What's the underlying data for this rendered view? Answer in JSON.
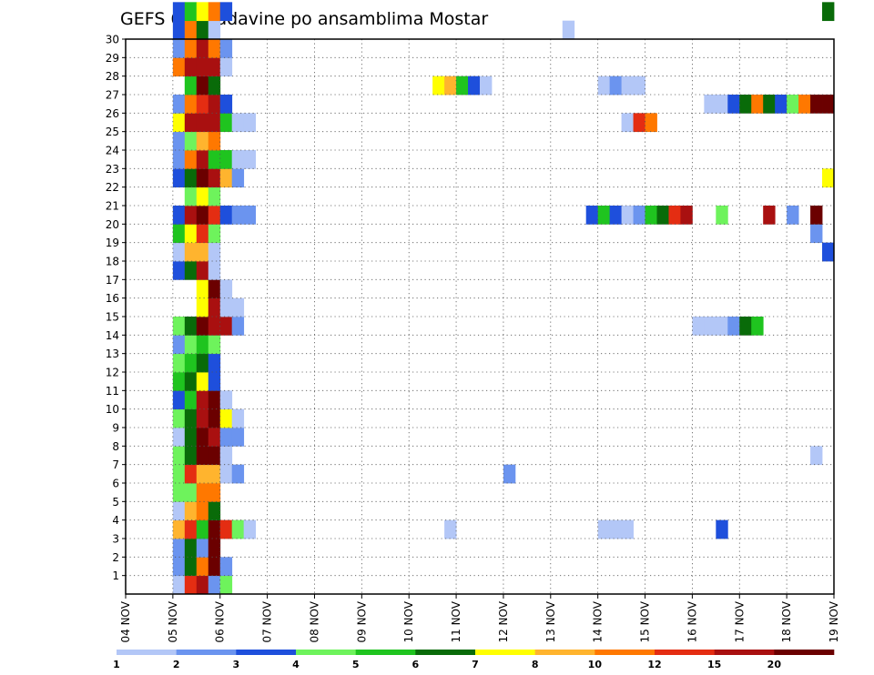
{
  "chart_data": {
    "type": "heatmap",
    "title": "GEFS 6hr padavine po ansamblima Mostar",
    "x_ticks": [
      "04 NOV",
      "05 NOV",
      "06 NOV",
      "07 NOV",
      "08 NOV",
      "09 NOV",
      "10 NOV",
      "11 NOV",
      "12 NOV",
      "13 NOV",
      "14 NOV",
      "15 NOV",
      "16 NOV",
      "17 NOV",
      "18 NOV",
      "19 NOV"
    ],
    "x_step_hours": 6,
    "y_ticks": [
      "1",
      "2",
      "3",
      "4",
      "5",
      "6",
      "7",
      "8",
      "9",
      "10",
      "11",
      "12",
      "13",
      "14",
      "15",
      "16",
      "17",
      "18",
      "19",
      "20",
      "21",
      "22",
      "23",
      "24",
      "25",
      "26",
      "27",
      "28",
      "29",
      "30"
    ],
    "y_range": [
      0,
      30
    ],
    "grid": true,
    "colorbar": {
      "labels": [
        "1",
        "2",
        "3",
        "4",
        "5",
        "6",
        "7",
        "8",
        "10",
        "12",
        "15",
        "20"
      ],
      "colors": [
        "#b3c7f7",
        "#6b94ef",
        "#1e4fdc",
        "#6ef35c",
        "#1fc41f",
        "#096b09",
        "#ffff00",
        "#ffb42e",
        "#ff7800",
        "#e42d12",
        "#a91010",
        "#6b0000"
      ]
    },
    "cells": [
      [
        0,
        4,
        0
      ],
      [
        0,
        5,
        9
      ],
      [
        0,
        6,
        10
      ],
      [
        0,
        7,
        1
      ],
      [
        0,
        8,
        3
      ],
      [
        1,
        4,
        1
      ],
      [
        1,
        5,
        5
      ],
      [
        1,
        6,
        8
      ],
      [
        1,
        7,
        11
      ],
      [
        1,
        8,
        1
      ],
      [
        2,
        4,
        1
      ],
      [
        2,
        5,
        5
      ],
      [
        2,
        6,
        1
      ],
      [
        2,
        7,
        11
      ],
      [
        3,
        4,
        7
      ],
      [
        3,
        5,
        9
      ],
      [
        3,
        6,
        4
      ],
      [
        3,
        7,
        11
      ],
      [
        3,
        8,
        9
      ],
      [
        3,
        9,
        3
      ],
      [
        3,
        10,
        0
      ],
      [
        3,
        27,
        0
      ],
      [
        3,
        40,
        0
      ],
      [
        3,
        41,
        0
      ],
      [
        3,
        42,
        0
      ],
      [
        3,
        50,
        2
      ],
      [
        4,
        4,
        0
      ],
      [
        4,
        5,
        7
      ],
      [
        4,
        6,
        8
      ],
      [
        4,
        7,
        5
      ],
      [
        5,
        4,
        3
      ],
      [
        5,
        5,
        3
      ],
      [
        5,
        6,
        8
      ],
      [
        5,
        7,
        8
      ],
      [
        6,
        4,
        3
      ],
      [
        6,
        5,
        9
      ],
      [
        6,
        6,
        7
      ],
      [
        6,
        7,
        7
      ],
      [
        6,
        8,
        0
      ],
      [
        6,
        9,
        1
      ],
      [
        6,
        32,
        1
      ],
      [
        7,
        4,
        3
      ],
      [
        7,
        5,
        5
      ],
      [
        7,
        6,
        11
      ],
      [
        7,
        7,
        11
      ],
      [
        7,
        8,
        0
      ],
      [
        7,
        58,
        0
      ],
      [
        8,
        4,
        0
      ],
      [
        8,
        5,
        5
      ],
      [
        8,
        6,
        11
      ],
      [
        8,
        7,
        10
      ],
      [
        8,
        8,
        1
      ],
      [
        8,
        9,
        1
      ],
      [
        9,
        4,
        3
      ],
      [
        9,
        5,
        5
      ],
      [
        9,
        6,
        10
      ],
      [
        9,
        7,
        11
      ],
      [
        9,
        8,
        6
      ],
      [
        9,
        9,
        0
      ],
      [
        10,
        4,
        2
      ],
      [
        10,
        5,
        4
      ],
      [
        10,
        6,
        10
      ],
      [
        10,
        7,
        11
      ],
      [
        10,
        8,
        0
      ],
      [
        11,
        4,
        4
      ],
      [
        11,
        5,
        5
      ],
      [
        11,
        6,
        6
      ],
      [
        11,
        7,
        2
      ],
      [
        12,
        4,
        3
      ],
      [
        12,
        5,
        4
      ],
      [
        12,
        6,
        5
      ],
      [
        12,
        7,
        2
      ],
      [
        13,
        4,
        1
      ],
      [
        13,
        5,
        3
      ],
      [
        13,
        6,
        4
      ],
      [
        13,
        7,
        3
      ],
      [
        14,
        4,
        3
      ],
      [
        14,
        5,
        5
      ],
      [
        14,
        6,
        11
      ],
      [
        14,
        7,
        10
      ],
      [
        14,
        8,
        10
      ],
      [
        14,
        9,
        1
      ],
      [
        14,
        48,
        0
      ],
      [
        14,
        49,
        0
      ],
      [
        14,
        50,
        0
      ],
      [
        14,
        51,
        1
      ],
      [
        14,
        52,
        5
      ],
      [
        14,
        53,
        4
      ],
      [
        15,
        6,
        6
      ],
      [
        15,
        7,
        10
      ],
      [
        15,
        8,
        0
      ],
      [
        15,
        9,
        0
      ],
      [
        16,
        6,
        6
      ],
      [
        16,
        7,
        11
      ],
      [
        16,
        8,
        0
      ],
      [
        17,
        4,
        2
      ],
      [
        17,
        5,
        5
      ],
      [
        17,
        6,
        10
      ],
      [
        17,
        7,
        0
      ],
      [
        18,
        4,
        0
      ],
      [
        18,
        5,
        7
      ],
      [
        18,
        6,
        7
      ],
      [
        18,
        7,
        0
      ],
      [
        18,
        59,
        2
      ],
      [
        19,
        4,
        4
      ],
      [
        19,
        5,
        6
      ],
      [
        19,
        6,
        9
      ],
      [
        19,
        7,
        3
      ],
      [
        19,
        58,
        1
      ],
      [
        20,
        4,
        2
      ],
      [
        20,
        5,
        10
      ],
      [
        20,
        6,
        11
      ],
      [
        20,
        7,
        9
      ],
      [
        20,
        8,
        2
      ],
      [
        20,
        9,
        1
      ],
      [
        20,
        10,
        1
      ],
      [
        20,
        39,
        2
      ],
      [
        20,
        40,
        4
      ],
      [
        20,
        41,
        2
      ],
      [
        20,
        42,
        0
      ],
      [
        20,
        43,
        1
      ],
      [
        20,
        44,
        4
      ],
      [
        20,
        45,
        5
      ],
      [
        20,
        46,
        9
      ],
      [
        20,
        47,
        10
      ],
      [
        20,
        50,
        3
      ],
      [
        20,
        54,
        10
      ],
      [
        20,
        56,
        1
      ],
      [
        20,
        58,
        11
      ],
      [
        21,
        5,
        3
      ],
      [
        21,
        6,
        6
      ],
      [
        21,
        7,
        3
      ],
      [
        22,
        4,
        2
      ],
      [
        22,
        5,
        5
      ],
      [
        22,
        6,
        11
      ],
      [
        22,
        7,
        10
      ],
      [
        22,
        8,
        7
      ],
      [
        22,
        9,
        1
      ],
      [
        22,
        59,
        6
      ],
      [
        23,
        4,
        1
      ],
      [
        23,
        5,
        8
      ],
      [
        23,
        6,
        10
      ],
      [
        23,
        7,
        4
      ],
      [
        23,
        8,
        4
      ],
      [
        23,
        9,
        0
      ],
      [
        23,
        10,
        0
      ],
      [
        24,
        4,
        1
      ],
      [
        24,
        5,
        3
      ],
      [
        24,
        6,
        7
      ],
      [
        24,
        7,
        8
      ],
      [
        25,
        4,
        6
      ],
      [
        25,
        5,
        10
      ],
      [
        25,
        6,
        10
      ],
      [
        25,
        7,
        10
      ],
      [
        25,
        8,
        4
      ],
      [
        25,
        9,
        0
      ],
      [
        25,
        10,
        0
      ],
      [
        25,
        42,
        0
      ],
      [
        25,
        43,
        9
      ],
      [
        25,
        44,
        8
      ],
      [
        26,
        4,
        1
      ],
      [
        26,
        5,
        8
      ],
      [
        26,
        6,
        9
      ],
      [
        26,
        7,
        10
      ],
      [
        26,
        8,
        2
      ],
      [
        26,
        49,
        0
      ],
      [
        26,
        50,
        0
      ],
      [
        26,
        51,
        2
      ],
      [
        26,
        52,
        5
      ],
      [
        26,
        53,
        8
      ],
      [
        26,
        54,
        5
      ],
      [
        26,
        55,
        2
      ],
      [
        26,
        56,
        3
      ],
      [
        26,
        57,
        8
      ],
      [
        26,
        58,
        11
      ],
      [
        26,
        59,
        11
      ],
      [
        27,
        5,
        4
      ],
      [
        27,
        6,
        11
      ],
      [
        27,
        7,
        5
      ],
      [
        27,
        26,
        6
      ],
      [
        27,
        27,
        7
      ],
      [
        27,
        28,
        4
      ],
      [
        27,
        29,
        2
      ],
      [
        27,
        30,
        0
      ],
      [
        27,
        40,
        0
      ],
      [
        27,
        41,
        1
      ],
      [
        27,
        42,
        0
      ],
      [
        27,
        43,
        0
      ],
      [
        28,
        4,
        8
      ],
      [
        28,
        5,
        10
      ],
      [
        28,
        6,
        10
      ],
      [
        28,
        7,
        10
      ],
      [
        28,
        8,
        0
      ],
      [
        29,
        4,
        1
      ],
      [
        29,
        5,
        8
      ],
      [
        29,
        6,
        10
      ],
      [
        29,
        7,
        8
      ],
      [
        29,
        8,
        1
      ],
      [
        30,
        4,
        2
      ],
      [
        30,
        5,
        8
      ],
      [
        30,
        6,
        5
      ],
      [
        30,
        7,
        0
      ],
      [
        30,
        37,
        0
      ],
      [
        31,
        4,
        2
      ],
      [
        31,
        5,
        4
      ],
      [
        31,
        6,
        6
      ],
      [
        31,
        7,
        8
      ],
      [
        31,
        8,
        2
      ],
      [
        31,
        59,
        5
      ]
    ]
  }
}
